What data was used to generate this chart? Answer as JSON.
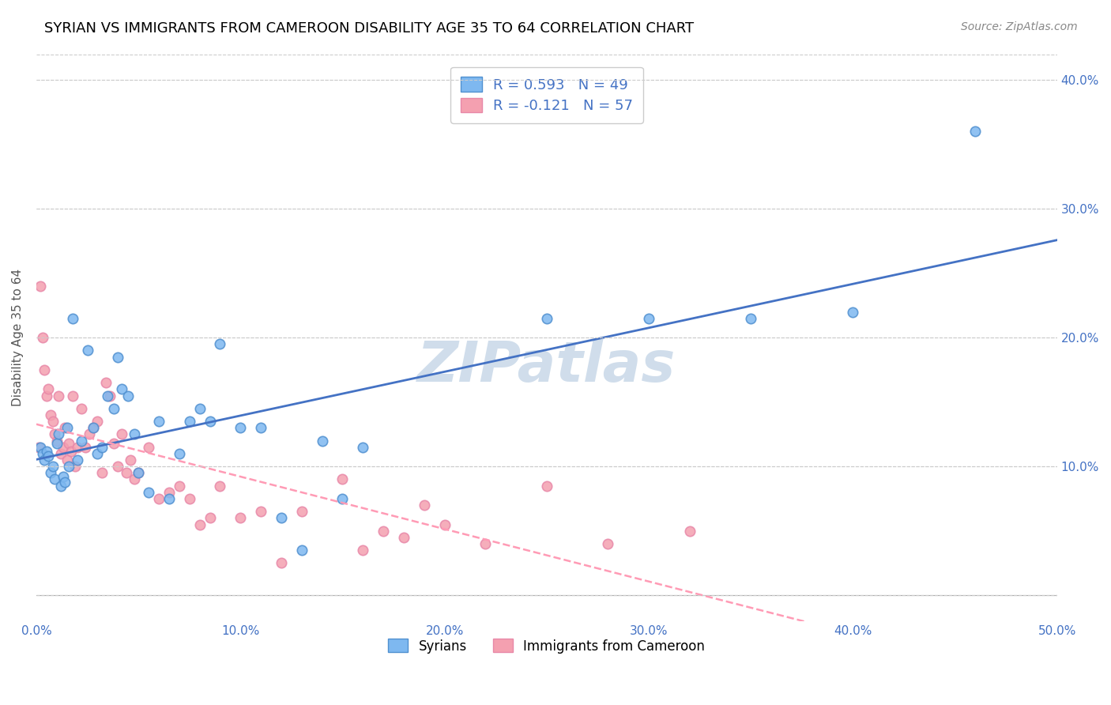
{
  "title": "SYRIAN VS IMMIGRANTS FROM CAMEROON DISABILITY AGE 35 TO 64 CORRELATION CHART",
  "source": "Source: ZipAtlas.com",
  "ylabel": "Disability Age 35 to 64",
  "xlim": [
    0.0,
    0.5
  ],
  "ylim": [
    -0.02,
    0.42
  ],
  "xticks": [
    0.0,
    0.1,
    0.2,
    0.3,
    0.4,
    0.5
  ],
  "yticks": [
    0.0,
    0.1,
    0.2,
    0.3,
    0.4
  ],
  "ytick_labels": [
    "",
    "10.0%",
    "20.0%",
    "30.0%",
    "40.0%"
  ],
  "xtick_labels": [
    "0.0%",
    "10.0%",
    "20.0%",
    "30.0%",
    "40.0%",
    "50.0%"
  ],
  "legend_line1": "R = 0.593   N = 49",
  "legend_line2": "R = -0.121   N = 57",
  "syrians_color": "#7EB8F0",
  "cameroon_color": "#F4A0B0",
  "syrians_edge_color": "#5090D0",
  "cameroon_edge_color": "#E888A8",
  "syrians_line_color": "#4472C4",
  "cameroon_line_color": "#FF9BB5",
  "watermark": "ZIPatlas",
  "watermark_color": "#C8D8E8",
  "syrians_x": [
    0.002,
    0.003,
    0.004,
    0.005,
    0.006,
    0.007,
    0.008,
    0.009,
    0.01,
    0.011,
    0.012,
    0.013,
    0.014,
    0.015,
    0.016,
    0.018,
    0.02,
    0.022,
    0.025,
    0.028,
    0.03,
    0.032,
    0.035,
    0.038,
    0.04,
    0.042,
    0.045,
    0.048,
    0.05,
    0.055,
    0.06,
    0.065,
    0.07,
    0.075,
    0.08,
    0.085,
    0.09,
    0.1,
    0.11,
    0.12,
    0.13,
    0.14,
    0.15,
    0.16,
    0.25,
    0.3,
    0.35,
    0.4,
    0.46
  ],
  "syrians_y": [
    0.115,
    0.11,
    0.105,
    0.112,
    0.108,
    0.095,
    0.1,
    0.09,
    0.118,
    0.125,
    0.085,
    0.092,
    0.088,
    0.13,
    0.1,
    0.215,
    0.105,
    0.12,
    0.19,
    0.13,
    0.11,
    0.115,
    0.155,
    0.145,
    0.185,
    0.16,
    0.155,
    0.125,
    0.095,
    0.08,
    0.135,
    0.075,
    0.11,
    0.135,
    0.145,
    0.135,
    0.195,
    0.13,
    0.13,
    0.06,
    0.035,
    0.12,
    0.075,
    0.115,
    0.215,
    0.215,
    0.215,
    0.22,
    0.36
  ],
  "cameroon_x": [
    0.001,
    0.002,
    0.003,
    0.004,
    0.005,
    0.006,
    0.007,
    0.008,
    0.009,
    0.01,
    0.011,
    0.012,
    0.013,
    0.014,
    0.015,
    0.016,
    0.017,
    0.018,
    0.019,
    0.02,
    0.022,
    0.024,
    0.026,
    0.028,
    0.03,
    0.032,
    0.034,
    0.036,
    0.038,
    0.04,
    0.042,
    0.044,
    0.046,
    0.048,
    0.05,
    0.055,
    0.06,
    0.065,
    0.07,
    0.075,
    0.08,
    0.085,
    0.09,
    0.1,
    0.11,
    0.12,
    0.13,
    0.15,
    0.16,
    0.17,
    0.18,
    0.19,
    0.2,
    0.22,
    0.25,
    0.28,
    0.32
  ],
  "cameroon_y": [
    0.115,
    0.24,
    0.2,
    0.175,
    0.155,
    0.16,
    0.14,
    0.135,
    0.125,
    0.12,
    0.155,
    0.11,
    0.115,
    0.13,
    0.105,
    0.118,
    0.112,
    0.155,
    0.1,
    0.115,
    0.145,
    0.115,
    0.125,
    0.13,
    0.135,
    0.095,
    0.165,
    0.155,
    0.118,
    0.1,
    0.125,
    0.095,
    0.105,
    0.09,
    0.095,
    0.115,
    0.075,
    0.08,
    0.085,
    0.075,
    0.055,
    0.06,
    0.085,
    0.06,
    0.065,
    0.025,
    0.065,
    0.09,
    0.035,
    0.05,
    0.045,
    0.07,
    0.055,
    0.04,
    0.085,
    0.04,
    0.05
  ]
}
